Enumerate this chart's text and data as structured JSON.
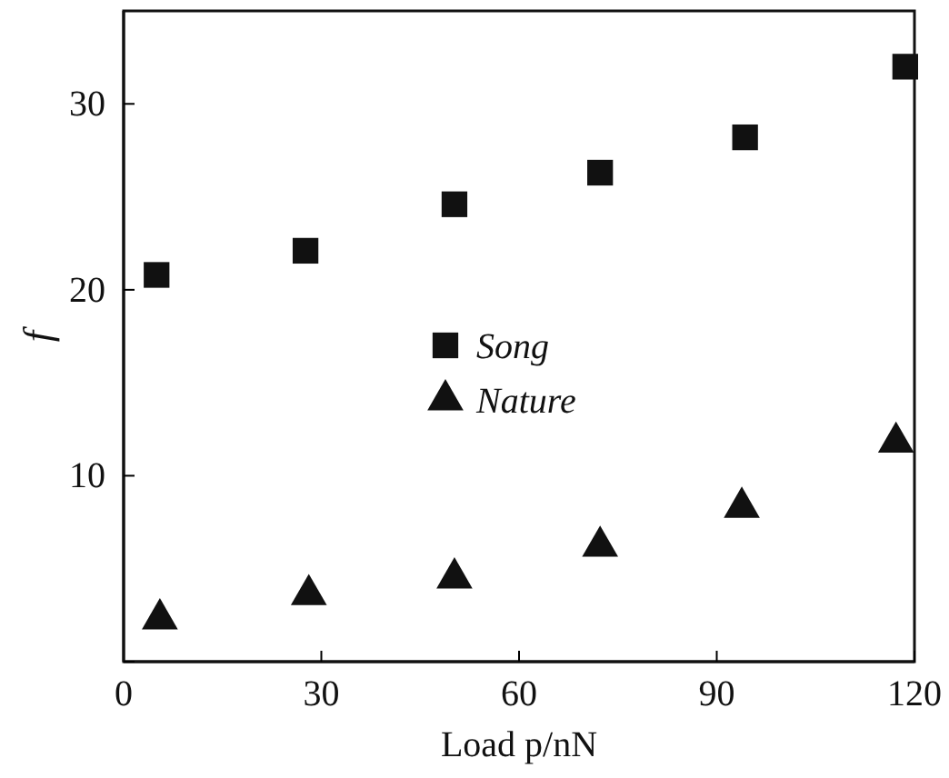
{
  "chart_data": {
    "type": "scatter",
    "xlabel": "Load p/nN",
    "ylabel": "f",
    "xlim": [
      0,
      120
    ],
    "xticks": [
      0,
      30,
      60,
      90,
      120
    ],
    "ylim": [
      0,
      35
    ],
    "yticks": [
      {
        "value": 0,
        "label": null
      },
      10,
      20,
      30
    ],
    "legend": "center",
    "grid": false,
    "series": [
      {
        "name": "Song",
        "color": "#111111",
        "marker": "square",
        "x": [
          5,
          27.6,
          50.2,
          72.3,
          94.3,
          118.6
        ],
        "values": [
          20.8,
          22.1,
          24.6,
          26.3,
          28.2,
          32.0
        ]
      },
      {
        "name": "Nature",
        "color": "#111111",
        "marker": "triangle",
        "x": [
          5.5,
          28.1,
          50.2,
          72.3,
          93.8,
          117.2
        ],
        "values": [
          2.3,
          3.6,
          4.5,
          6.2,
          8.3,
          11.8
        ]
      }
    ]
  }
}
